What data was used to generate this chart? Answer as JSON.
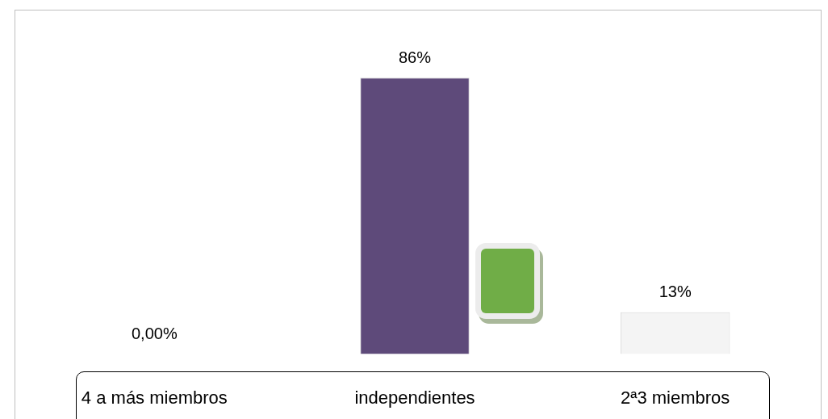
{
  "chart_data": {
    "type": "bar",
    "categories": [
      "4 a más miembros",
      "independientes",
      "2ª3 miembros"
    ],
    "values": [
      0,
      86,
      13
    ],
    "colors": [
      "#f4f4f4",
      "#5e4a7a",
      "#f4f4f4"
    ],
    "value_labels": [
      "0,00%",
      "86%",
      "13%"
    ],
    "legend": false
  }
}
